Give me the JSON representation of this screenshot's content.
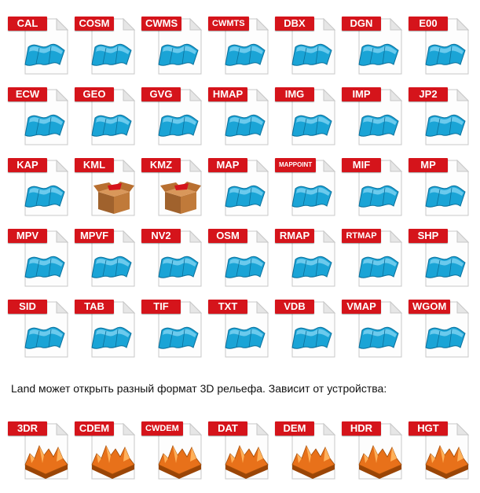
{
  "colors": {
    "tag_red": "#d5141b",
    "map_blue": "#1aa4d6",
    "terrain_orange": "#e8711a",
    "box_brown": "#a0622d"
  },
  "map_formats": [
    "CAL",
    "COSM",
    "CWMS",
    "CWMTS",
    "DBX",
    "DGN",
    "E00",
    "ECW",
    "GEO",
    "GVG",
    "HMAP",
    "IMG",
    "IMP",
    "JP2",
    "KAP",
    "KML",
    "KMZ",
    "MAP",
    "MAPPOINT",
    "MIF",
    "MP",
    "MPV",
    "MPVF",
    "NV2",
    "OSM",
    "RMAP",
    "RTMAP",
    "SHP",
    "SID",
    "TAB",
    "TIF",
    "TXT",
    "VDB",
    "VMAP",
    "WGOM"
  ],
  "map_icons": [
    "map-icon",
    "map-icon",
    "map-icon",
    "map-icon",
    "map-icon",
    "map-icon",
    "map-icon",
    "map-icon",
    "map-icon",
    "map-icon",
    "map-icon",
    "map-icon",
    "map-icon",
    "map-icon",
    "map-icon",
    "archive-box-icon",
    "archive-box-icon",
    "map-icon",
    "map-icon",
    "map-icon",
    "map-icon",
    "map-icon",
    "map-icon",
    "map-icon",
    "map-icon",
    "map-icon",
    "map-icon",
    "map-icon",
    "map-icon",
    "map-icon",
    "map-icon",
    "map-icon",
    "map-icon",
    "map-icon",
    "map-icon"
  ],
  "caption": "Land может открыть разный формат 3D рельефа. Зависит от устройства:",
  "terrain_formats": [
    "3DR",
    "CDEM",
    "CWDEM",
    "DAT",
    "DEM",
    "HDR",
    "HGT"
  ]
}
